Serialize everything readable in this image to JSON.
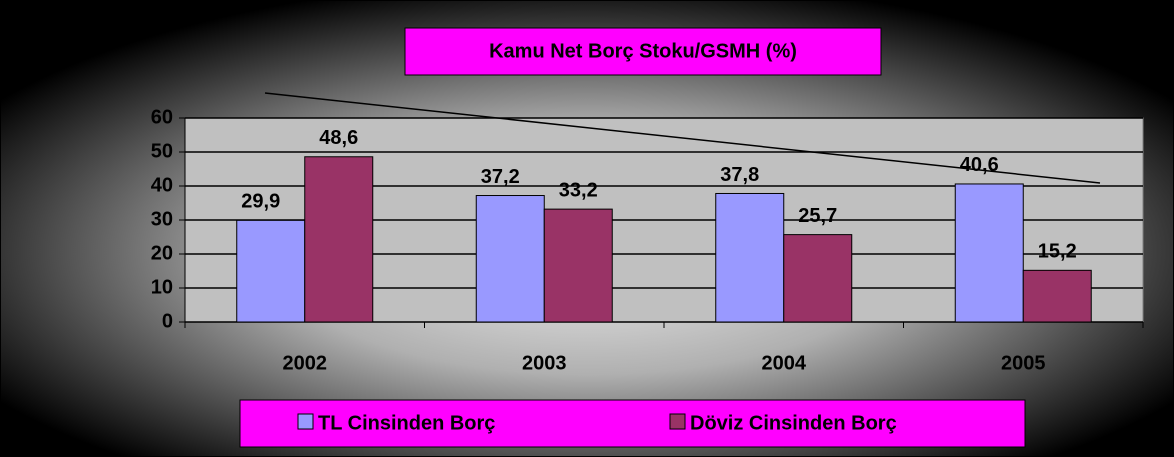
{
  "chart_data": {
    "type": "bar",
    "title": "Kamu Net Borç Stoku/GSMH (%)",
    "categories": [
      "2002",
      "2003",
      "2004",
      "2005"
    ],
    "series": [
      {
        "name": "TL Cinsinden Borç",
        "color": "#9999ff",
        "values": [
          29.9,
          37.2,
          37.8,
          40.6
        ],
        "value_labels": [
          "29,9",
          "37,2",
          "37,8",
          "40,6"
        ]
      },
      {
        "name": "Döviz Cinsinden Borç",
        "color": "#993366",
        "values": [
          48.6,
          33.2,
          25.7,
          15.2
        ],
        "value_labels": [
          "48,6",
          "33,2",
          "25,7",
          "15,2"
        ]
      }
    ],
    "ylim": [
      0,
      60
    ],
    "yticks": [
      0,
      10,
      20,
      30,
      40,
      50,
      60
    ],
    "grid": true,
    "legend": "bottom"
  }
}
